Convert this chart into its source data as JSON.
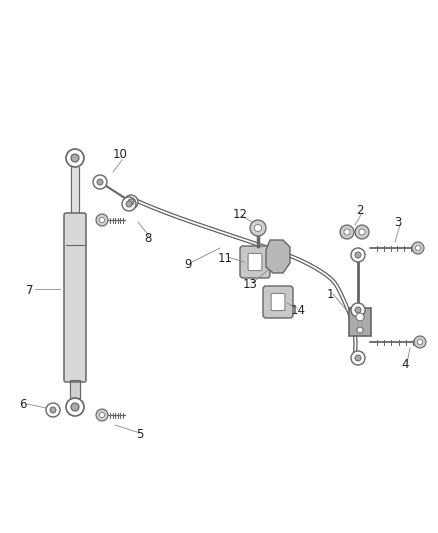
{
  "background_color": "#ffffff",
  "line_color": "#666666",
  "fig_width": 4.38,
  "fig_height": 5.33,
  "dpi": 100
}
